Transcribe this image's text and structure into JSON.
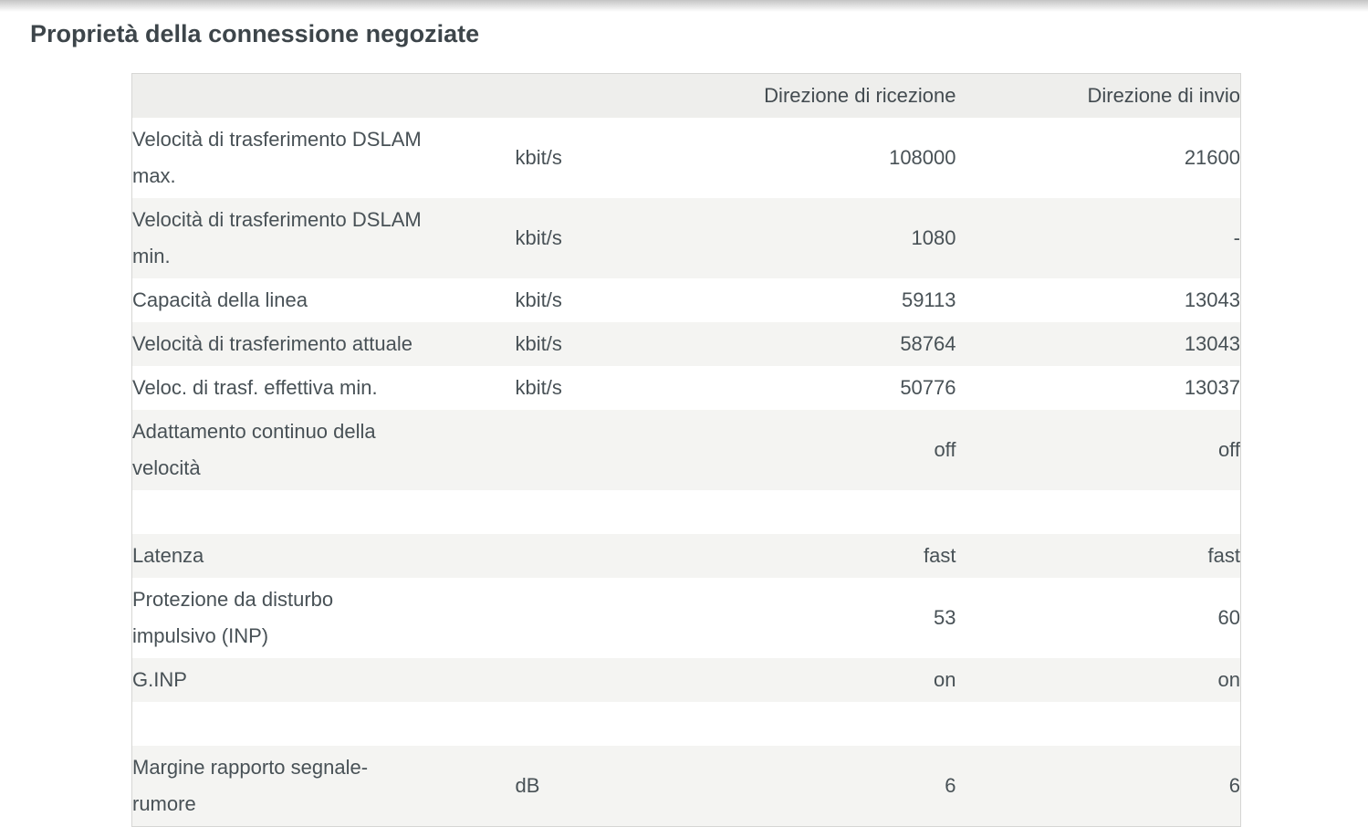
{
  "page": {
    "title": "Proprietà della connessione negoziate"
  },
  "colors": {
    "title_text": "#3d454a",
    "body_text": "#485156",
    "header_bg": "#eeeeec",
    "alt_row_bg": "#f4f4f2",
    "table_border": "#d6d6d4",
    "top_shadow": "#c4c4c4"
  },
  "table": {
    "headers": {
      "label": "",
      "unit": "",
      "rx": "Direzione di ricezione",
      "tx": "Direzione di invio"
    },
    "rows": [
      {
        "label": "Velocità di trasferimento DSLAM\nmax.",
        "unit": "kbit/s",
        "rx": "108000",
        "tx": "21600",
        "spacer": false
      },
      {
        "label": "Velocità di trasferimento DSLAM\nmin.",
        "unit": "kbit/s",
        "rx": "1080",
        "tx": "-",
        "spacer": false
      },
      {
        "label": "Capacità della linea",
        "unit": "kbit/s",
        "rx": "59113",
        "tx": "13043",
        "spacer": false
      },
      {
        "label": "Velocità di trasferimento attuale",
        "unit": "kbit/s",
        "rx": "58764",
        "tx": "13043",
        "spacer": false
      },
      {
        "label": "Veloc. di trasf. effettiva min.",
        "unit": "kbit/s",
        "rx": "50776",
        "tx": "13037",
        "spacer": false
      },
      {
        "label": "Adattamento continuo della\nvelocità",
        "unit": "",
        "rx": "off",
        "tx": "off",
        "spacer": false
      },
      {
        "label": "",
        "unit": "",
        "rx": "",
        "tx": "",
        "spacer": true
      },
      {
        "label": "Latenza",
        "unit": "",
        "rx": "fast",
        "tx": "fast",
        "spacer": false
      },
      {
        "label": "Protezione da disturbo\nimpulsivo (INP)",
        "unit": "",
        "rx": "53",
        "tx": "60",
        "spacer": false
      },
      {
        "label": "G.INP",
        "unit": "",
        "rx": "on",
        "tx": "on",
        "spacer": false
      },
      {
        "label": "",
        "unit": "",
        "rx": "",
        "tx": "",
        "spacer": true
      },
      {
        "label": "Margine rapporto segnale-\nrumore",
        "unit": "dB",
        "rx": "6",
        "tx": "6",
        "spacer": false
      }
    ]
  }
}
